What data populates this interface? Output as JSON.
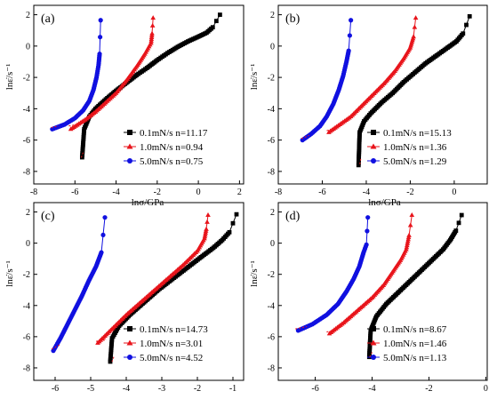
{
  "chart_data": [
    {
      "type": "scatter",
      "panel_label": "(a)",
      "xlabel": "lnσ/GPa",
      "ylabel": "lnε̇/s⁻¹",
      "xlim": [
        -8,
        2.2
      ],
      "ylim": [
        -8.8,
        2.6
      ],
      "xticks": [
        -8,
        -6,
        -4,
        -2,
        0,
        2
      ],
      "yticks": [
        -8,
        -6,
        -4,
        -2,
        0,
        2
      ],
      "xticklabels": [
        "-8",
        "-6",
        "-4",
        "-2",
        "0",
        "2"
      ],
      "yticklabels": [
        "-8",
        "-6",
        "-4",
        "-2",
        "0",
        "2"
      ],
      "show_xlabel": true,
      "legend_position": "bottom-right",
      "series": [
        {
          "name": "0.1mN/s",
          "n_label": "n=11.17",
          "color": "#000000",
          "marker": "square",
          "points": [
            [
              -5.65,
              -7.1
            ],
            [
              -5.55,
              -5.3
            ],
            [
              -5.3,
              -4.5
            ],
            [
              -5.0,
              -4.0
            ],
            [
              -4.5,
              -3.4
            ],
            [
              -4.0,
              -2.85
            ],
            [
              -3.5,
              -2.35
            ],
            [
              -3.0,
              -1.85
            ],
            [
              -2.5,
              -1.4
            ],
            [
              -2.0,
              -0.9
            ],
            [
              -1.5,
              -0.45
            ],
            [
              -1.0,
              -0.05
            ],
            [
              -0.5,
              0.3
            ],
            [
              0.0,
              0.6
            ],
            [
              0.4,
              0.85
            ],
            [
              0.7,
              1.2
            ],
            [
              1.05,
              2.0
            ]
          ],
          "fit": [
            [
              -5.6,
              -6.8
            ],
            [
              -5.7,
              -7.15
            ]
          ]
        },
        {
          "name": "1.0mN/s",
          "n_label": "n=0.94",
          "color": "#e8141b",
          "marker": "triangle",
          "points": [
            [
              -6.2,
              -5.3
            ],
            [
              -5.5,
              -4.7
            ],
            [
              -5.0,
              -4.2
            ],
            [
              -4.5,
              -3.6
            ],
            [
              -4.0,
              -3.0
            ],
            [
              -3.5,
              -2.2
            ],
            [
              -3.0,
              -1.3
            ],
            [
              -2.6,
              -0.5
            ],
            [
              -2.3,
              0.2
            ],
            [
              -2.25,
              0.8
            ],
            [
              -2.2,
              1.8
            ]
          ],
          "fit": [
            [
              -6.3,
              -5.1
            ],
            [
              -5.9,
              -5.0
            ]
          ]
        },
        {
          "name": "5.0mN/s",
          "n_label": "n=0.75",
          "color": "#1010e0",
          "marker": "circle",
          "points": [
            [
              -7.1,
              -5.3
            ],
            [
              -6.5,
              -5.0
            ],
            [
              -6.0,
              -4.6
            ],
            [
              -5.6,
              -4.1
            ],
            [
              -5.3,
              -3.5
            ],
            [
              -5.1,
              -2.8
            ],
            [
              -4.95,
              -2.0
            ],
            [
              -4.85,
              -1.2
            ],
            [
              -4.8,
              -0.5
            ],
            [
              -4.75,
              1.65
            ]
          ],
          "fit": [
            [
              -7.15,
              -5.2
            ],
            [
              -6.8,
              -5.1
            ]
          ]
        }
      ]
    },
    {
      "type": "scatter",
      "panel_label": "(b)",
      "xlabel": "lnσ/GPa",
      "ylabel": "lnε̇/s⁻¹",
      "xlim": [
        -8,
        1.5
      ],
      "ylim": [
        -8.8,
        2.6
      ],
      "xticks": [
        -8,
        -6,
        -4,
        -2,
        0
      ],
      "yticks": [
        -8,
        -6,
        -4,
        -2,
        0,
        2
      ],
      "xticklabels": [
        "-8",
        "-6",
        "-4",
        "-2",
        "0"
      ],
      "yticklabels": [
        "-8",
        "-6",
        "-4",
        "-2",
        "0",
        "2"
      ],
      "show_xlabel": false,
      "legend_position": "bottom-right",
      "series": [
        {
          "name": "0.1mN/s",
          "n_label": "n=15.13",
          "color": "#000000",
          "marker": "square",
          "points": [
            [
              -4.35,
              -7.6
            ],
            [
              -4.3,
              -5.5
            ],
            [
              -4.1,
              -4.8
            ],
            [
              -3.8,
              -4.3
            ],
            [
              -3.3,
              -3.6
            ],
            [
              -2.8,
              -3.0
            ],
            [
              -2.3,
              -2.3
            ],
            [
              -1.8,
              -1.7
            ],
            [
              -1.3,
              -1.1
            ],
            [
              -0.8,
              -0.6
            ],
            [
              -0.3,
              -0.1
            ],
            [
              0.1,
              0.3
            ],
            [
              0.4,
              0.8
            ],
            [
              0.7,
              1.9
            ]
          ],
          "fit": [
            [
              -4.25,
              -7.2
            ],
            [
              -4.3,
              -7.6
            ]
          ]
        },
        {
          "name": "1.0mN/s",
          "n_label": "n=1.36",
          "color": "#e8141b",
          "marker": "triangle",
          "points": [
            [
              -5.7,
              -5.5
            ],
            [
              -5.2,
              -5.0
            ],
            [
              -4.7,
              -4.5
            ],
            [
              -4.2,
              -3.8
            ],
            [
              -3.7,
              -3.1
            ],
            [
              -3.2,
              -2.4
            ],
            [
              -2.7,
              -1.6
            ],
            [
              -2.3,
              -0.8
            ],
            [
              -2.0,
              -0.1
            ],
            [
              -1.85,
              0.6
            ],
            [
              -1.75,
              1.8
            ]
          ],
          "fit": [
            [
              -5.8,
              -5.4
            ],
            [
              -5.4,
              -5.25
            ]
          ]
        },
        {
          "name": "5.0mN/s",
          "n_label": "n=1.29",
          "color": "#1010e0",
          "marker": "circle",
          "points": [
            [
              -6.9,
              -6.0
            ],
            [
              -6.5,
              -5.6
            ],
            [
              -6.1,
              -5.1
            ],
            [
              -5.8,
              -4.5
            ],
            [
              -5.5,
              -3.7
            ],
            [
              -5.25,
              -2.8
            ],
            [
              -5.05,
              -1.9
            ],
            [
              -4.9,
              -1.0
            ],
            [
              -4.8,
              -0.3
            ],
            [
              -4.7,
              1.65
            ]
          ],
          "fit": [
            [
              -6.95,
              -5.9
            ],
            [
              -6.6,
              -5.7
            ]
          ]
        }
      ]
    },
    {
      "type": "scatter",
      "panel_label": "(c)",
      "xlabel": "",
      "ylabel": "lnε̇/s⁻¹",
      "xlim": [
        -6.6,
        -0.7
      ],
      "ylim": [
        -8.8,
        2.6
      ],
      "xticks": [
        -6,
        -5,
        -4,
        -3,
        -2,
        -1
      ],
      "yticks": [
        -8,
        -6,
        -4,
        -2,
        0,
        2
      ],
      "xticklabels": [
        "-6",
        "-5",
        "-4",
        "-3",
        "-2",
        "-1"
      ],
      "yticklabels": [
        "-8",
        "-6",
        "-4",
        "-2",
        "0",
        "2"
      ],
      "show_xlabel": false,
      "legend_position": "bottom-right",
      "series": [
        {
          "name": "0.1mN/s",
          "n_label": "n=14.73",
          "color": "#000000",
          "marker": "square",
          "points": [
            [
              -4.45,
              -7.6
            ],
            [
              -4.4,
              -6.1
            ],
            [
              -4.2,
              -5.3
            ],
            [
              -3.9,
              -4.6
            ],
            [
              -3.5,
              -3.8
            ],
            [
              -3.1,
              -3.0
            ],
            [
              -2.7,
              -2.3
            ],
            [
              -2.3,
              -1.6
            ],
            [
              -1.9,
              -0.9
            ],
            [
              -1.55,
              -0.3
            ],
            [
              -1.3,
              0.2
            ],
            [
              -1.1,
              0.7
            ],
            [
              -0.9,
              1.85
            ]
          ],
          "fit": [
            [
              -4.35,
              -7.3
            ],
            [
              -4.4,
              -7.6
            ]
          ]
        },
        {
          "name": "1.0mN/s",
          "n_label": "n=3.01",
          "color": "#e8141b",
          "marker": "triangle",
          "points": [
            [
              -4.8,
              -6.4
            ],
            [
              -4.4,
              -5.5
            ],
            [
              -4.0,
              -4.6
            ],
            [
              -3.6,
              -3.8
            ],
            [
              -3.2,
              -3.0
            ],
            [
              -2.8,
              -2.2
            ],
            [
              -2.4,
              -1.4
            ],
            [
              -2.0,
              -0.5
            ],
            [
              -1.8,
              0.3
            ],
            [
              -1.75,
              0.9
            ],
            [
              -1.7,
              1.8
            ]
          ],
          "fit": [
            [
              -4.85,
              -6.3
            ],
            [
              -4.55,
              -6.2
            ]
          ]
        },
        {
          "name": "5.0mN/s",
          "n_label": "n=4.52",
          "color": "#1010e0",
          "marker": "circle",
          "points": [
            [
              -6.05,
              -6.9
            ],
            [
              -5.85,
              -6.1
            ],
            [
              -5.65,
              -5.2
            ],
            [
              -5.45,
              -4.3
            ],
            [
              -5.25,
              -3.4
            ],
            [
              -5.05,
              -2.4
            ],
            [
              -4.85,
              -1.5
            ],
            [
              -4.7,
              -0.6
            ],
            [
              -4.6,
              1.65
            ]
          ],
          "fit": [
            [
              -6.1,
              -6.8
            ],
            [
              -5.85,
              -6.5
            ]
          ]
        }
      ]
    },
    {
      "type": "scatter",
      "panel_label": "(d)",
      "xlabel": "",
      "ylabel": "lnε̇/s⁻¹",
      "xlim": [
        -7.3,
        0.05
      ],
      "ylim": [
        -8.8,
        2.6
      ],
      "xticks": [
        -6,
        -4,
        -2,
        0
      ],
      "yticks": [
        -8,
        -6,
        -4,
        -2,
        0,
        2
      ],
      "xticklabels": [
        "-6",
        "-4",
        "-2",
        "0"
      ],
      "yticklabels": [
        "-8",
        "-6",
        "-4",
        "-2",
        "0",
        "2"
      ],
      "show_xlabel": false,
      "legend_position": "bottom-right",
      "series": [
        {
          "name": "0.1mN/s",
          "n_label": "n=8.67",
          "color": "#000000",
          "marker": "square",
          "points": [
            [
              -4.1,
              -7.3
            ],
            [
              -4.05,
              -5.6
            ],
            [
              -3.85,
              -4.7
            ],
            [
              -3.5,
              -3.9
            ],
            [
              -3.1,
              -3.2
            ],
            [
              -2.7,
              -2.5
            ],
            [
              -2.3,
              -1.8
            ],
            [
              -1.9,
              -1.1
            ],
            [
              -1.5,
              -0.4
            ],
            [
              -1.25,
              0.2
            ],
            [
              -1.05,
              0.8
            ],
            [
              -0.85,
              1.8
            ]
          ],
          "fit": [
            [
              -4.0,
              -7.0
            ],
            [
              -4.1,
              -7.35
            ]
          ]
        },
        {
          "name": "1.0mN/s",
          "n_label": "n=1.46",
          "color": "#e8141b",
          "marker": "triangle",
          "points": [
            [
              -5.5,
              -5.8
            ],
            [
              -5.0,
              -5.1
            ],
            [
              -4.5,
              -4.3
            ],
            [
              -4.0,
              -3.5
            ],
            [
              -3.6,
              -2.7
            ],
            [
              -3.3,
              -1.9
            ],
            [
              -3.0,
              -1.1
            ],
            [
              -2.8,
              -0.4
            ],
            [
              -2.7,
              0.5
            ],
            [
              -2.6,
              1.8
            ]
          ],
          "fit": [
            [
              -5.6,
              -5.7
            ],
            [
              -5.25,
              -5.55
            ]
          ]
        },
        {
          "name": "5.0mN/s",
          "n_label": "n=1.13",
          "color": "#1010e0",
          "marker": "circle",
          "points": [
            [
              -6.6,
              -5.6
            ],
            [
              -6.1,
              -5.2
            ],
            [
              -5.6,
              -4.6
            ],
            [
              -5.2,
              -3.9
            ],
            [
              -4.9,
              -3.1
            ],
            [
              -4.65,
              -2.3
            ],
            [
              -4.45,
              -1.5
            ],
            [
              -4.3,
              -0.6
            ],
            [
              -4.2,
              -0.1
            ],
            [
              -4.15,
              1.65
            ]
          ],
          "fit": [
            [
              -6.7,
              -5.5
            ],
            [
              -6.3,
              -5.35
            ]
          ]
        }
      ]
    }
  ]
}
